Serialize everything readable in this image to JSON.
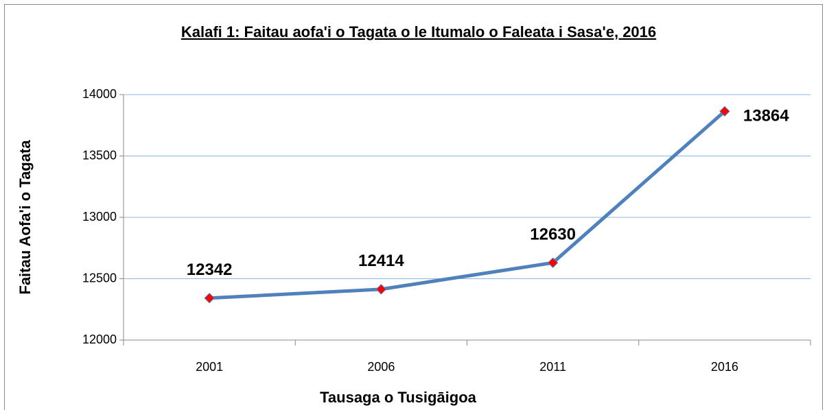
{
  "chart_data": {
    "type": "line",
    "title": "Kalafi 1: Faitau aofa'i o Tagata o le Itumalo o Faleata i Sasa'e, 2016",
    "x_label": "Tausaga o Tusigāigoa",
    "y_label": "Faitau Aofa'i o Tagata",
    "categories": [
      "2001",
      "2006",
      "2011",
      "2016"
    ],
    "series": [
      {
        "name": "Faitau Aofa'i o Tagata",
        "color": "#4f81bd",
        "marker_color": "#ff0000",
        "values": [
          12342,
          12414,
          12630,
          13864
        ]
      }
    ],
    "ylim": [
      12000,
      14000
    ],
    "yticks": [
      12000,
      12500,
      13000,
      13500,
      14000
    ],
    "grid": true
  }
}
